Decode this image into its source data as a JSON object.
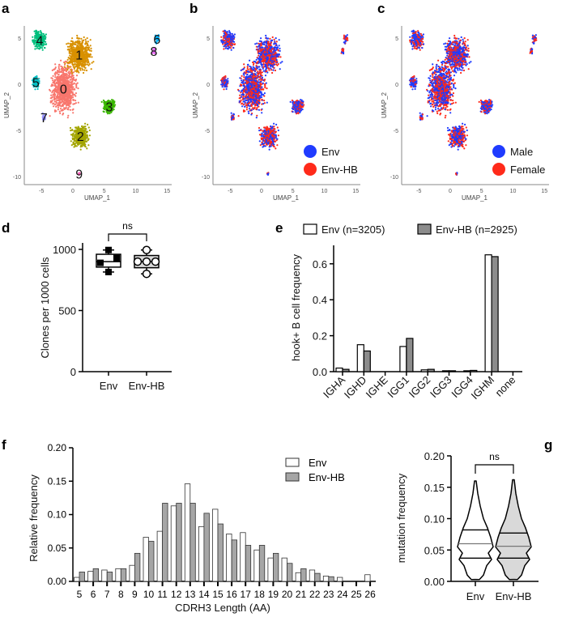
{
  "panels": {
    "a": "a",
    "b": "b",
    "c": "c",
    "d": "d",
    "e": "e",
    "f": "f",
    "g": "g"
  },
  "chart_data": [
    {
      "id": "a",
      "type": "scatter",
      "xlabel": "UMAP_1",
      "ylabel": "UMAP_2",
      "xticks": [
        "-5",
        "0",
        "5",
        "10",
        "15"
      ],
      "yticks": [
        "5",
        "0",
        "-5",
        "-10"
      ],
      "xlim": [
        -8,
        16
      ],
      "ylim": [
        -11,
        7.5
      ],
      "clusters": [
        {
          "label": "0",
          "color": "#F8766D",
          "center": [
            -1.5,
            -0.5
          ],
          "spread": [
            2.6,
            3.4
          ],
          "n": 900
        },
        {
          "label": "1",
          "color": "#D89000",
          "center": [
            1,
            3.2
          ],
          "spread": [
            2.6,
            2.4
          ],
          "n": 650
        },
        {
          "label": "2",
          "color": "#A3A500",
          "center": [
            1.2,
            -5.6
          ],
          "spread": [
            1.8,
            1.6
          ],
          "n": 380
        },
        {
          "label": "3",
          "color": "#39B600",
          "center": [
            5.8,
            -2.4
          ],
          "spread": [
            1.3,
            1.0
          ],
          "n": 200
        },
        {
          "label": "4",
          "color": "#00BF7D",
          "center": [
            -5.3,
            4.8
          ],
          "spread": [
            1.3,
            1.4
          ],
          "n": 220
        },
        {
          "label": "5",
          "color": "#00BFC4",
          "center": [
            -5.9,
            0.2
          ],
          "spread": [
            0.7,
            1.0
          ],
          "n": 90
        },
        {
          "label": "6",
          "color": "#00B0F6",
          "center": [
            13.4,
            4.9
          ],
          "spread": [
            0.4,
            0.7
          ],
          "n": 40
        },
        {
          "label": "7",
          "color": "#9590FF",
          "center": [
            -4.6,
            -3.6
          ],
          "spread": [
            0.3,
            0.5
          ],
          "n": 40
        },
        {
          "label": "8",
          "color": "#E76BF3",
          "center": [
            12.9,
            3.6
          ],
          "spread": [
            0.3,
            0.4
          ],
          "n": 20
        },
        {
          "label": "9",
          "color": "#FF62BC",
          "center": [
            1,
            -9.7
          ],
          "spread": [
            0.2,
            0.2
          ],
          "n": 12
        }
      ]
    },
    {
      "id": "b",
      "type": "scatter",
      "xlabel": "UMAP_1",
      "ylabel": "UMAP_2",
      "legend": [
        {
          "name": "Env",
          "color": "#1F3BFF"
        },
        {
          "name": "Env-HB",
          "color": "#FF2A1A"
        }
      ],
      "legend_placement": "bottom-right"
    },
    {
      "id": "c",
      "type": "scatter",
      "xlabel": "UMAP_1",
      "ylabel": "UMAP_2",
      "legend": [
        {
          "name": "Male",
          "color": "#1F3BFF"
        },
        {
          "name": "Female",
          "color": "#FF2A1A"
        }
      ],
      "legend_placement": "bottom-right"
    },
    {
      "id": "d",
      "type": "box",
      "ylabel": "Clones per 1000 cells",
      "categories": [
        "Env",
        "Env-HB"
      ],
      "ylim": [
        0,
        1000
      ],
      "yticks": [
        "0",
        "500",
        "1000"
      ],
      "series": [
        {
          "name": "Env",
          "points": [
            995,
            890,
            930,
            815
          ],
          "q1": 855,
          "median": 900,
          "q3": 960,
          "min": 815,
          "max": 995,
          "fill": "#ffffff",
          "marker": "square"
        },
        {
          "name": "Env-HB",
          "points": [
            995,
            900,
            900,
            900,
            800
          ],
          "q1": 850,
          "median": 900,
          "q3": 950,
          "min": 800,
          "max": 995,
          "fill": "#d9d9d9",
          "marker": "circle"
        }
      ],
      "annotation": "ns"
    },
    {
      "id": "e",
      "type": "bar",
      "ylabel": "hook+ B cell frequency",
      "categories": [
        "IGHA",
        "IGHD",
        "IGHE",
        "IGG1",
        "IGG2",
        "IGG3",
        "IGG4",
        "IGHM",
        "none"
      ],
      "ylim": [
        0,
        0.7
      ],
      "yticks": [
        "0.0",
        "0.2",
        "0.4",
        "0.6"
      ],
      "series": [
        {
          "name": "Env (n=3205)",
          "fill": "#ffffff",
          "values": [
            0.02,
            0.15,
            0,
            0.14,
            0.01,
            0.005,
            0.005,
            0.65,
            0
          ]
        },
        {
          "name": "Env-HB (n=2925)",
          "fill": "#8c8c8c",
          "values": [
            0.013,
            0.115,
            0,
            0.185,
            0.013,
            0.005,
            0.007,
            0.64,
            0
          ]
        }
      ],
      "legend_placement": "top"
    },
    {
      "id": "f",
      "type": "bar",
      "xlabel": "CDRH3 Length (AA)",
      "ylabel": "Relative frequency",
      "categories": [
        "5",
        "6",
        "7",
        "8",
        "9",
        "10",
        "11",
        "12",
        "13",
        "14",
        "15",
        "16",
        "17",
        "18",
        "19",
        "20",
        "21",
        "22",
        "23",
        "24",
        "25",
        "26"
      ],
      "ylim": [
        0,
        0.2
      ],
      "yticks": [
        "0.00",
        "0.05",
        "0.10",
        "0.15",
        "0.20"
      ],
      "series": [
        {
          "name": "Env",
          "fill": "#ffffff",
          "values": [
            0.006,
            0.015,
            0.017,
            0.019,
            0.024,
            0.066,
            0.075,
            0.113,
            0.146,
            0.082,
            0.108,
            0.071,
            0.073,
            0.047,
            0.035,
            0.035,
            0.013,
            0.017,
            0.008,
            0.006,
            0,
            0.01
          ]
        },
        {
          "name": "Env-HB",
          "fill": "#a6a6a6",
          "values": [
            0.014,
            0.019,
            0.014,
            0.019,
            0.042,
            0.06,
            0.117,
            0.117,
            0.117,
            0.102,
            0.086,
            0.062,
            0.054,
            0.054,
            0.042,
            0.027,
            0.019,
            0.012,
            0.007,
            0,
            0,
            0
          ]
        }
      ],
      "legend_placement": "top-right"
    },
    {
      "id": "g",
      "type": "violin",
      "ylabel": "mutation frequency",
      "categories": [
        "Env",
        "Env-HB"
      ],
      "ylim": [
        0,
        0.2
      ],
      "yticks": [
        "0.00",
        "0.05",
        "0.10",
        "0.15",
        "0.20"
      ],
      "series": [
        {
          "name": "Env",
          "fill": "#ffffff",
          "min": 0.003,
          "max": 0.16,
          "q1": 0.037,
          "median": 0.06,
          "q3": 0.082
        },
        {
          "name": "Env-HB",
          "fill": "#d9d9d9",
          "min": 0.003,
          "max": 0.162,
          "q1": 0.037,
          "median": 0.056,
          "q3": 0.077
        }
      ],
      "annotation": "ns"
    }
  ]
}
